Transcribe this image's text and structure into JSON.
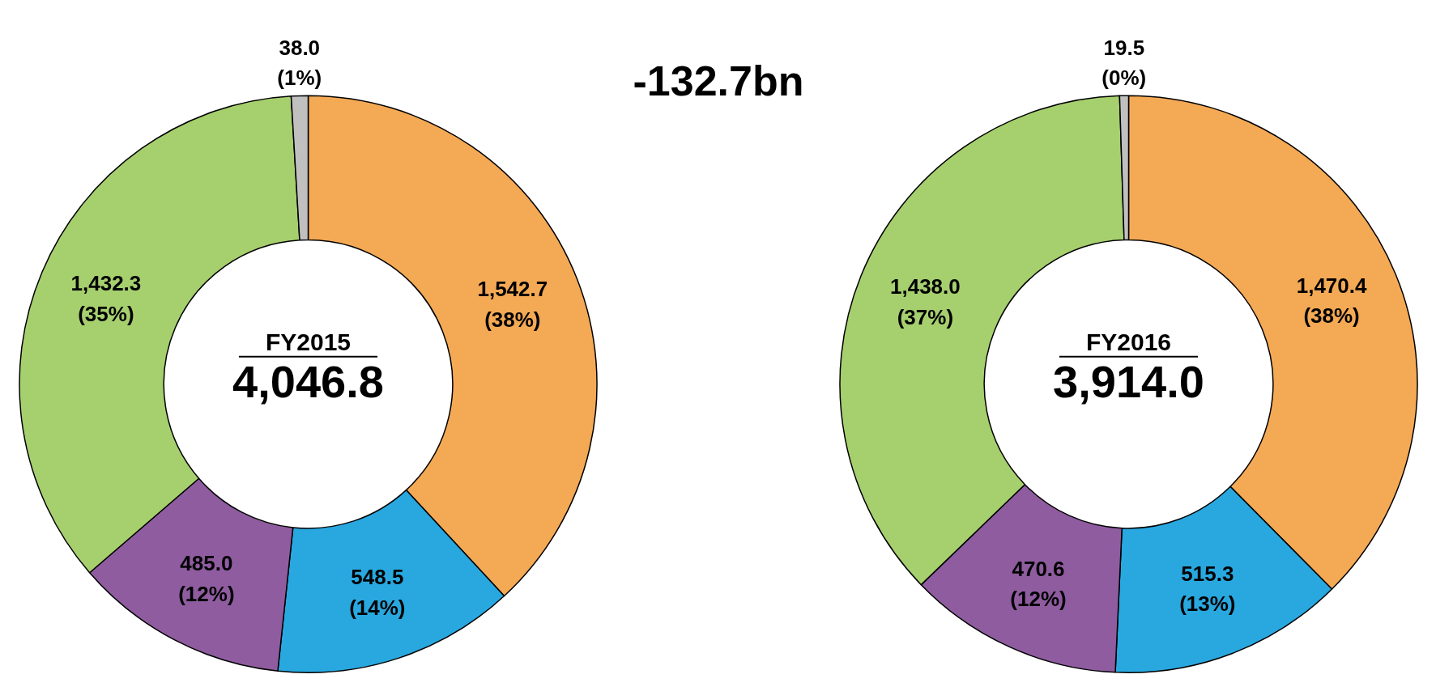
{
  "chart_data": [
    {
      "type": "donut",
      "title": "FY2015",
      "subtitle": "4,046.8",
      "annotations": [
        "-132.7bn"
      ],
      "categories": [
        null,
        null,
        null,
        null,
        null
      ],
      "values": [
        1542.7,
        548.5,
        485.0,
        1432.3,
        38.0
      ],
      "colors": [
        "#f4a955",
        "#29a8e0",
        "#8f5ca0",
        "#a6cf6e",
        "#c0c0c0"
      ],
      "value_labels": [
        "1,542.7\n(38%)",
        "548.5\n(14%)",
        "485.0\n(12%)",
        "1,432.3\n(35%)",
        "38.0\n(1%)"
      ]
    },
    {
      "type": "donut",
      "title": "FY2016",
      "subtitle": "3,914.0",
      "categories": [
        null,
        null,
        null,
        null,
        null
      ],
      "values": [
        1470.4,
        515.3,
        470.6,
        1438.0,
        19.5
      ],
      "colors": [
        "#f4a955",
        "#29a8e0",
        "#8f5ca0",
        "#a6cf6e",
        "#c0c0c0"
      ],
      "value_labels": [
        "1,470.4\n(38%)",
        "515.3\n(13%)",
        "470.6\n(12%)",
        "1,438.0\n(37%)",
        "19.5\n(0%)"
      ]
    }
  ]
}
